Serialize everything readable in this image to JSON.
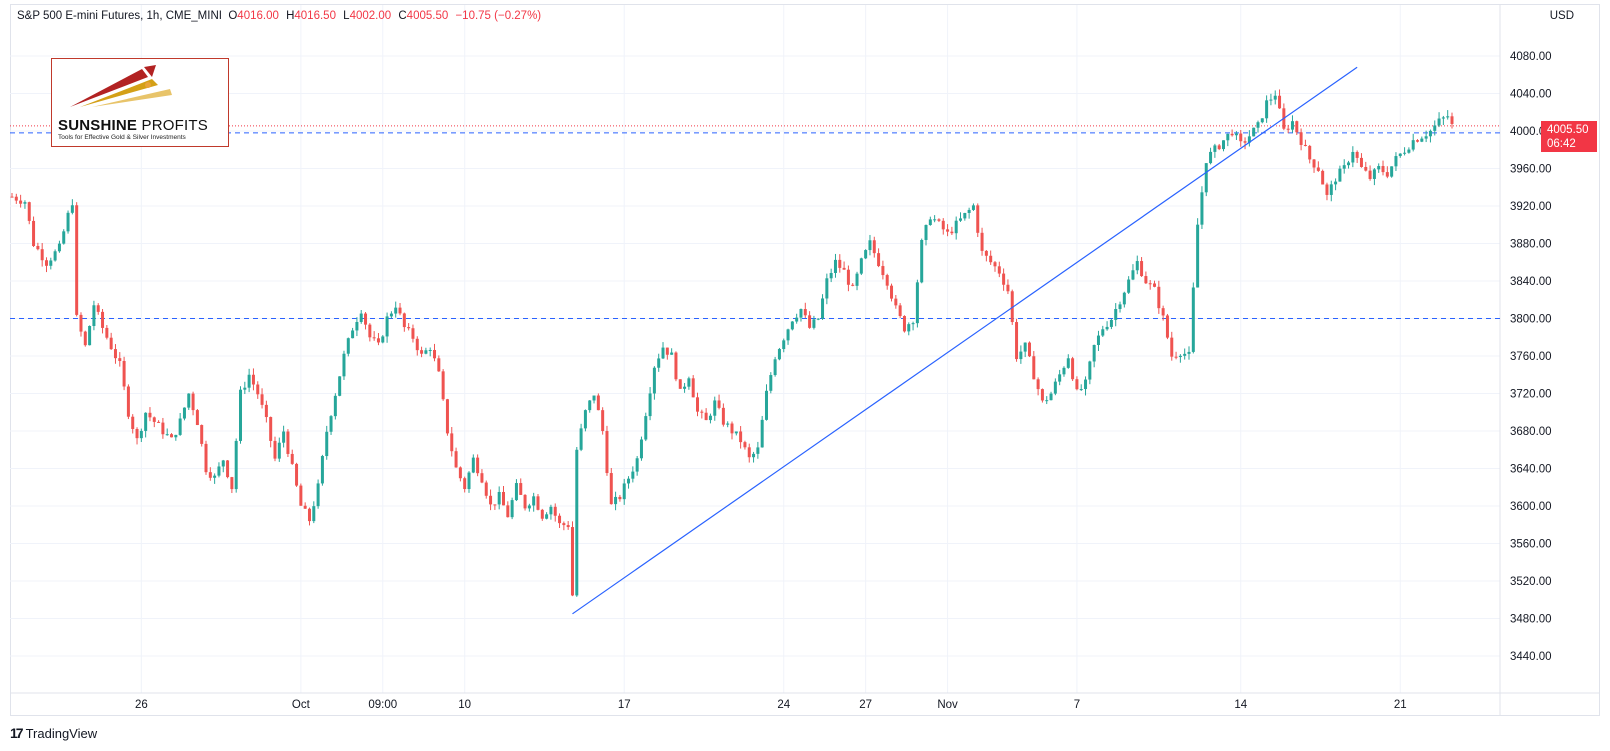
{
  "header": {
    "symbol": "S&P 500 E-mini Futures, 1h, CME_MINI",
    "open_label": "O",
    "open": "4016.00",
    "high_label": "H",
    "high": "4016.50",
    "low_label": "L",
    "low": "4002.00",
    "close_label": "C",
    "close": "4005.50",
    "change": "−10.75 (−0.27%)"
  },
  "axis": {
    "currency": "USD"
  },
  "price_tag": {
    "price": "4005.50",
    "countdown": "06:42"
  },
  "logo": {
    "name_bold": "SUNSHINE",
    "name_thin": "PROFITS",
    "tagline": "Tools for Effective Gold & Silver Investments"
  },
  "branding": {
    "text": "TradingView"
  },
  "colors": {
    "up": "#26a69a",
    "down": "#ef5350",
    "trendline": "#2962ff",
    "level_line": "#2962ff",
    "last_price": "#f23645"
  },
  "chart_data": {
    "type": "candlestick",
    "title": "S&P 500 E-mini Futures, 1h, CME_MINI",
    "ylim": [
      3420,
      4100
    ],
    "y_ticks": [
      3440,
      3480,
      3520,
      3560,
      3600,
      3640,
      3680,
      3720,
      3760,
      3800,
      3840,
      3880,
      3920,
      3960,
      4000,
      4040,
      4080
    ],
    "y_tick_labels": [
      "3440.00",
      "3480.00",
      "3520.00",
      "3560.00",
      "3600.00",
      "3640.00",
      "3680.00",
      "3720.00",
      "3760.00",
      "3800.00",
      "3840.00",
      "3880.00",
      "3920.00",
      "3960.00",
      "4000.00",
      "4040.00",
      "4080.00"
    ],
    "x_tick_labels": [
      "26",
      "Oct",
      "09:00",
      "10",
      "17",
      "24",
      "27",
      "Nov",
      "7",
      "14",
      "21"
    ],
    "x_tick_index": [
      30,
      67,
      86,
      105,
      142,
      179,
      198,
      217,
      247,
      285,
      322
    ],
    "grid": true,
    "horizontal_levels": [
      3998,
      3800
    ],
    "last_price": 4005.5,
    "trendline": {
      "from": [
        130,
        3485
      ],
      "to": [
        312,
        4068
      ]
    },
    "path": [
      [
        0,
        3930
      ],
      [
        3,
        3925
      ],
      [
        5,
        3880
      ],
      [
        8,
        3860
      ],
      [
        11,
        3875
      ],
      [
        13,
        3910
      ],
      [
        14,
        3925
      ],
      [
        15,
        3800
      ],
      [
        17,
        3770
      ],
      [
        19,
        3815
      ],
      [
        21,
        3790
      ],
      [
        23,
        3770
      ],
      [
        25,
        3750
      ],
      [
        27,
        3700
      ],
      [
        29,
        3670
      ],
      [
        31,
        3700
      ],
      [
        33,
        3690
      ],
      [
        35,
        3680
      ],
      [
        37,
        3670
      ],
      [
        39,
        3690
      ],
      [
        41,
        3720
      ],
      [
        43,
        3690
      ],
      [
        45,
        3640
      ],
      [
        47,
        3630
      ],
      [
        49,
        3650
      ],
      [
        51,
        3620
      ],
      [
        53,
        3720
      ],
      [
        55,
        3740
      ],
      [
        57,
        3720
      ],
      [
        59,
        3690
      ],
      [
        61,
        3650
      ],
      [
        63,
        3680
      ],
      [
        65,
        3640
      ],
      [
        67,
        3600
      ],
      [
        69,
        3585
      ],
      [
        71,
        3620
      ],
      [
        73,
        3680
      ],
      [
        75,
        3720
      ],
      [
        77,
        3760
      ],
      [
        79,
        3790
      ],
      [
        81,
        3810
      ],
      [
        83,
        3780
      ],
      [
        85,
        3770
      ],
      [
        87,
        3800
      ],
      [
        89,
        3815
      ],
      [
        91,
        3790
      ],
      [
        93,
        3780
      ],
      [
        95,
        3760
      ],
      [
        97,
        3770
      ],
      [
        99,
        3740
      ],
      [
        101,
        3680
      ],
      [
        103,
        3640
      ],
      [
        105,
        3620
      ],
      [
        107,
        3650
      ],
      [
        109,
        3630
      ],
      [
        111,
        3600
      ],
      [
        113,
        3610
      ],
      [
        115,
        3590
      ],
      [
        117,
        3620
      ],
      [
        119,
        3600
      ],
      [
        121,
        3610
      ],
      [
        123,
        3590
      ],
      [
        125,
        3600
      ],
      [
        127,
        3580
      ],
      [
        129,
        3580
      ],
      [
        130,
        3505
      ],
      [
        131,
        3660
      ],
      [
        133,
        3700
      ],
      [
        135,
        3720
      ],
      [
        137,
        3680
      ],
      [
        139,
        3600
      ],
      [
        141,
        3610
      ],
      [
        143,
        3630
      ],
      [
        145,
        3650
      ],
      [
        147,
        3700
      ],
      [
        149,
        3750
      ],
      [
        151,
        3770
      ],
      [
        153,
        3760
      ],
      [
        155,
        3720
      ],
      [
        157,
        3740
      ],
      [
        159,
        3700
      ],
      [
        161,
        3690
      ],
      [
        163,
        3710
      ],
      [
        165,
        3690
      ],
      [
        167,
        3680
      ],
      [
        169,
        3670
      ],
      [
        171,
        3650
      ],
      [
        173,
        3660
      ],
      [
        175,
        3720
      ],
      [
        177,
        3760
      ],
      [
        179,
        3780
      ],
      [
        181,
        3800
      ],
      [
        183,
        3810
      ],
      [
        185,
        3790
      ],
      [
        187,
        3800
      ],
      [
        189,
        3840
      ],
      [
        191,
        3860
      ],
      [
        193,
        3850
      ],
      [
        195,
        3830
      ],
      [
        197,
        3860
      ],
      [
        199,
        3880
      ],
      [
        201,
        3860
      ],
      [
        203,
        3840
      ],
      [
        205,
        3810
      ],
      [
        207,
        3790
      ],
      [
        209,
        3800
      ],
      [
        211,
        3880
      ],
      [
        213,
        3910
      ],
      [
        215,
        3900
      ],
      [
        217,
        3890
      ],
      [
        219,
        3900
      ],
      [
        221,
        3910
      ],
      [
        223,
        3920
      ],
      [
        225,
        3870
      ],
      [
        227,
        3860
      ],
      [
        229,
        3850
      ],
      [
        231,
        3830
      ],
      [
        233,
        3760
      ],
      [
        235,
        3770
      ],
      [
        237,
        3740
      ],
      [
        239,
        3710
      ],
      [
        241,
        3720
      ],
      [
        243,
        3740
      ],
      [
        245,
        3760
      ],
      [
        247,
        3720
      ],
      [
        249,
        3730
      ],
      [
        251,
        3770
      ],
      [
        253,
        3790
      ],
      [
        255,
        3800
      ],
      [
        257,
        3820
      ],
      [
        259,
        3840
      ],
      [
        261,
        3860
      ],
      [
        263,
        3840
      ],
      [
        265,
        3830
      ],
      [
        267,
        3800
      ],
      [
        269,
        3760
      ],
      [
        271,
        3765
      ],
      [
        273,
        3760
      ],
      [
        275,
        3900
      ],
      [
        277,
        3970
      ],
      [
        279,
        3980
      ],
      [
        281,
        3990
      ],
      [
        283,
        4000
      ],
      [
        285,
        3985
      ],
      [
        287,
        3995
      ],
      [
        289,
        4005
      ],
      [
        291,
        4030
      ],
      [
        293,
        4040
      ],
      [
        295,
        4000
      ],
      [
        297,
        4010
      ],
      [
        299,
        3990
      ],
      [
        301,
        3970
      ],
      [
        303,
        3960
      ],
      [
        305,
        3930
      ],
      [
        307,
        3950
      ],
      [
        309,
        3960
      ],
      [
        311,
        3980
      ],
      [
        313,
        3960
      ],
      [
        315,
        3950
      ],
      [
        317,
        3960
      ],
      [
        319,
        3955
      ],
      [
        321,
        3970
      ],
      [
        323,
        3980
      ],
      [
        325,
        3990
      ],
      [
        327,
        3995
      ],
      [
        329,
        4000
      ],
      [
        331,
        4010
      ],
      [
        333,
        4016
      ],
      [
        334,
        4005.5
      ]
    ]
  }
}
